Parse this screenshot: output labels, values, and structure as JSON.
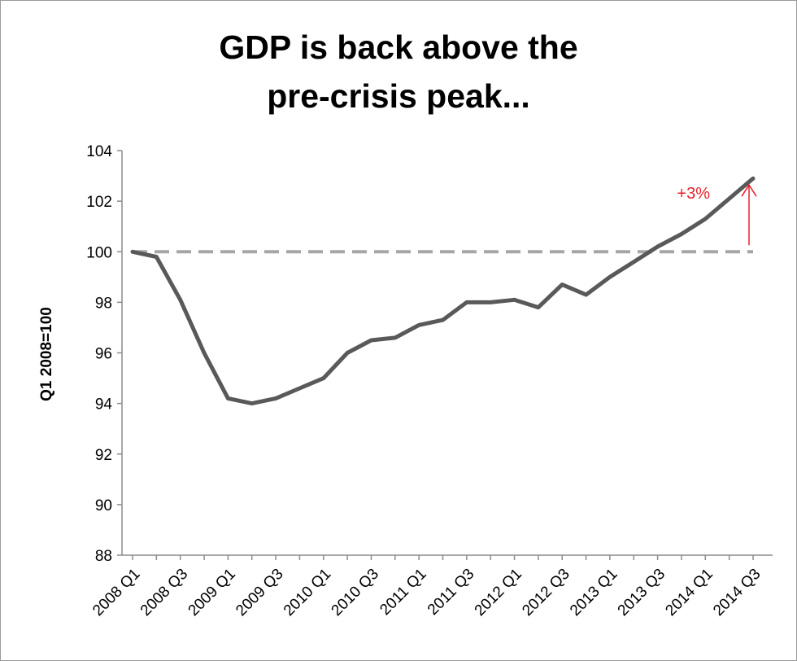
{
  "chart_data": {
    "type": "line",
    "title_lines": [
      "GDP is back above the",
      "pre-crisis peak..."
    ],
    "xlabel": "",
    "ylabel": "Q1 2008=100",
    "ylim": [
      88,
      104
    ],
    "yticks": [
      88,
      90,
      92,
      94,
      96,
      98,
      100,
      102,
      104
    ],
    "x": [
      "2008 Q1",
      "2008 Q2",
      "2008 Q3",
      "2008 Q4",
      "2009 Q1",
      "2009 Q2",
      "2009 Q3",
      "2009 Q4",
      "2010 Q1",
      "2010 Q2",
      "2010 Q3",
      "2010 Q4",
      "2011 Q1",
      "2011 Q2",
      "2011 Q3",
      "2011 Q4",
      "2012 Q1",
      "2012 Q2",
      "2012 Q3",
      "2012 Q4",
      "2013 Q1",
      "2013 Q2",
      "2013 Q3",
      "2013 Q4",
      "2014 Q1",
      "2014 Q2",
      "2014 Q3"
    ],
    "xtick_labels": [
      "2008 Q1",
      "2008 Q3",
      "2009 Q1",
      "2009 Q3",
      "2010 Q1",
      "2010 Q3",
      "2011 Q1",
      "2011 Q3",
      "2012 Q1",
      "2012 Q3",
      "2013 Q1",
      "2013 Q3",
      "2014 Q1",
      "2014 Q3"
    ],
    "series": [
      {
        "color": "#595959",
        "values": [
          100.0,
          99.8,
          98.1,
          96.0,
          94.2,
          94.0,
          94.2,
          94.6,
          95.0,
          96.0,
          96.5,
          96.6,
          97.1,
          97.3,
          98.0,
          98.0,
          98.1,
          97.8,
          98.7,
          98.3,
          99.0,
          99.6,
          100.2,
          100.7,
          101.3,
          102.1,
          102.9
        ]
      }
    ],
    "reference_line": {
      "value": 100,
      "style": "dashed",
      "color": "#a6a6a6"
    },
    "annotation": {
      "text": "+3%",
      "from": 100,
      "to": 102.9,
      "color": "#e8202a"
    },
    "grid": false,
    "legend": "none"
  }
}
